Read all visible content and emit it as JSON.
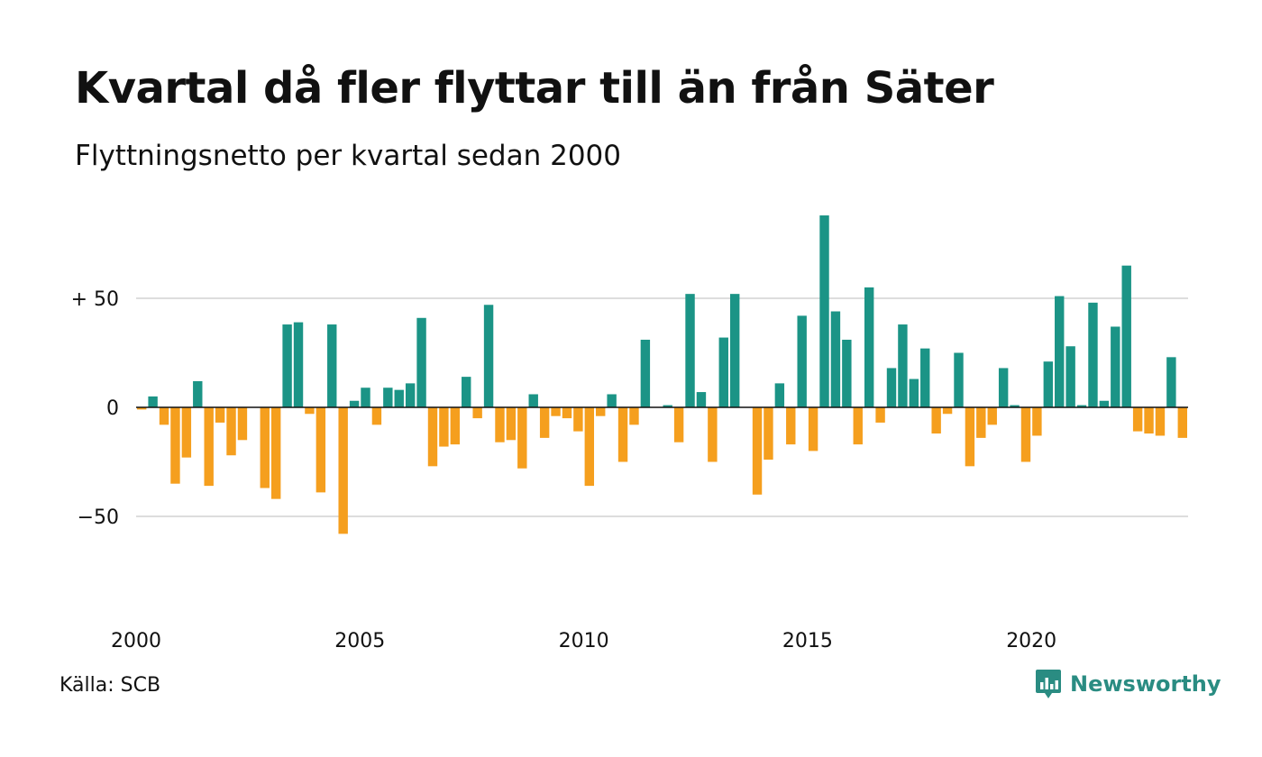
{
  "title": "Kvartal då fler flyttar till än från Säter",
  "subtitle": "Flyttningsnetto per kvartal sedan 2000",
  "source": "Källa: SCB",
  "brand": {
    "name": "Newsworthy",
    "icon": "newsworthy-chart-bubble-icon"
  },
  "colors": {
    "positive": "#1b9486",
    "negative": "#f59f1e",
    "grid": "#dddddd",
    "zero_line": "#111111"
  },
  "chart_data": {
    "type": "bar",
    "title": "Kvartal då fler flyttar till än från Säter",
    "xlabel": "",
    "ylabel": "",
    "x_start": "2000 Q1",
    "x_ticks": [
      {
        "value": 2000,
        "label": "2000"
      },
      {
        "value": 2005,
        "label": "2005"
      },
      {
        "value": 2010,
        "label": "2010"
      },
      {
        "value": 2015,
        "label": "2015"
      },
      {
        "value": 2020,
        "label": "2020"
      }
    ],
    "y_ticks": [
      {
        "value": 50,
        "label": "+ 50"
      },
      {
        "value": 0,
        "label": "0"
      },
      {
        "value": -50,
        "label": "−50"
      }
    ],
    "ylim": [
      -95,
      95
    ],
    "grid": true,
    "values": [
      -1,
      5,
      -8,
      -35,
      -23,
      12,
      -36,
      -7,
      -22,
      -15,
      0,
      -37,
      -42,
      38,
      39,
      -3,
      -39,
      38,
      -58,
      3,
      9,
      -8,
      9,
      8,
      11,
      41,
      -27,
      -18,
      -17,
      14,
      -5,
      47,
      -16,
      -15,
      -28,
      6,
      -14,
      -4,
      -5,
      -11,
      -36,
      -4,
      6,
      -25,
      -8,
      31,
      0,
      1,
      -16,
      52,
      7,
      -25,
      32,
      52,
      0,
      -40,
      -24,
      11,
      -17,
      42,
      -20,
      88,
      44,
      31,
      -17,
      55,
      -7,
      18,
      38,
      13,
      27,
      -12,
      -3,
      25,
      -27,
      -14,
      -8,
      18,
      1,
      -25,
      -13,
      21,
      51,
      28,
      1,
      48,
      3,
      37,
      65,
      -11,
      -12,
      -13,
      23,
      -14
    ]
  }
}
